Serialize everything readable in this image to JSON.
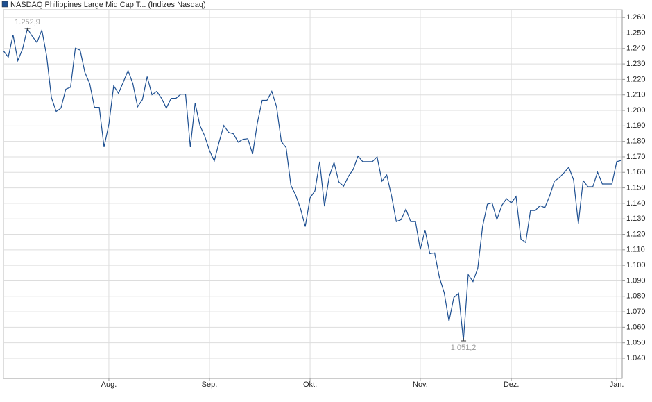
{
  "chart_data": {
    "type": "line",
    "series": [
      {
        "name": "NASDAQ Philippines Large Mid Cap T... (Indizes Nasdaq)",
        "color": "#1d4f91",
        "values": [
          1238.4,
          1234.4,
          1248.8,
          1232.1,
          1239.8,
          1252.9,
          1247.9,
          1243.8,
          1251.9,
          1235.3,
          1208.3,
          1199.3,
          1201.5,
          1213.7,
          1215.0,
          1240.2,
          1238.9,
          1224.5,
          1217.3,
          1202.0,
          1202.0,
          1176.3,
          1191.2,
          1215.9,
          1211.0,
          1218.2,
          1225.8,
          1217.3,
          1202.4,
          1206.9,
          1221.8,
          1210.1,
          1212.3,
          1207.8,
          1201.5,
          1207.8,
          1207.8,
          1210.5,
          1210.5,
          1176.3,
          1204.7,
          1190.3,
          1183.5,
          1174.1,
          1167.3,
          1179.5,
          1190.3,
          1185.8,
          1184.9,
          1179.5,
          1181.3,
          1181.7,
          1171.8,
          1192.1,
          1206.5,
          1206.5,
          1212.3,
          1202.4,
          1179.9,
          1175.9,
          1151.6,
          1145.3,
          1136.7,
          1125.0,
          1143.5,
          1148.0,
          1166.9,
          1138.1,
          1157.4,
          1166.4,
          1153.8,
          1151.1,
          1157.4,
          1161.9,
          1170.5,
          1166.9,
          1166.9,
          1166.9,
          1170.0,
          1154.3,
          1158.3,
          1144.8,
          1128.2,
          1129.5,
          1136.3,
          1128.2,
          1128.2,
          1110.2,
          1122.8,
          1107.5,
          1108.0,
          1092.2,
          1082.3,
          1063.9,
          1079.2,
          1081.9,
          1051.2,
          1094.0,
          1089.5,
          1098.1,
          1125.0,
          1139.4,
          1140.3,
          1129.5,
          1138.5,
          1143.0,
          1140.3,
          1144.4,
          1117.0,
          1114.7,
          1135.4,
          1135.4,
          1138.5,
          1137.2,
          1144.8,
          1154.3,
          1156.5,
          1159.7,
          1163.3,
          1155.2,
          1126.8,
          1154.7,
          1150.7,
          1150.7,
          1160.1,
          1152.5,
          1152.5,
          1152.5,
          1166.9,
          1167.8
        ]
      }
    ],
    "annotations": [
      {
        "point": 5,
        "label": "1.252,9"
      },
      {
        "point": 96,
        "label": "1.051,2"
      }
    ],
    "xticks": [
      {
        "value": 22,
        "label": "Aug."
      },
      {
        "value": 43,
        "label": "Sep."
      },
      {
        "value": 64,
        "label": "Okt."
      },
      {
        "value": 87,
        "label": "Nov."
      },
      {
        "value": 106,
        "label": "Dez."
      },
      {
        "value": 128,
        "label": "Jan."
      }
    ],
    "ylim": [
      1027,
      1265
    ],
    "yticks": [
      {
        "value": 1040,
        "label": "1.040"
      },
      {
        "value": 1050,
        "label": "1.050"
      },
      {
        "value": 1060,
        "label": "1.060"
      },
      {
        "value": 1070,
        "label": "1.070"
      },
      {
        "value": 1080,
        "label": "1.080"
      },
      {
        "value": 1090,
        "label": "1.090"
      },
      {
        "value": 1100,
        "label": "1.100"
      },
      {
        "value": 1110,
        "label": "1.110"
      },
      {
        "value": 1120,
        "label": "1.120"
      },
      {
        "value": 1130,
        "label": "1.130"
      },
      {
        "value": 1140,
        "label": "1.140"
      },
      {
        "value": 1150,
        "label": "1.150"
      },
      {
        "value": 1160,
        "label": "1.160"
      },
      {
        "value": 1170,
        "label": "1.170"
      },
      {
        "value": 1180,
        "label": "1.180"
      },
      {
        "value": 1190,
        "label": "1.190"
      },
      {
        "value": 1200,
        "label": "1.200"
      },
      {
        "value": 1210,
        "label": "1.210"
      },
      {
        "value": 1220,
        "label": "1.220"
      },
      {
        "value": 1230,
        "label": "1.230"
      },
      {
        "value": 1240,
        "label": "1.240"
      },
      {
        "value": 1250,
        "label": "1.250"
      },
      {
        "value": 1260,
        "label": "1.260"
      }
    ],
    "grid": true
  }
}
